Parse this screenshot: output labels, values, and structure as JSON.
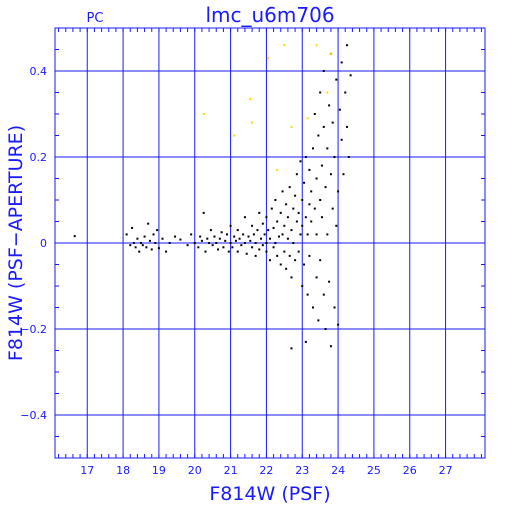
{
  "chart_data": {
    "type": "scatter",
    "title": "lmc_u6m706",
    "corner_label": "PC",
    "xlabel": "F814W (PSF)",
    "ylabel": "F814W (PSF−APERTURE)",
    "xlim": [
      16.1,
      28.1
    ],
    "ylim": [
      -0.5,
      0.5
    ],
    "x_ticks": [
      17,
      18,
      19,
      20,
      21,
      22,
      23,
      24,
      25,
      26,
      27
    ],
    "y_ticks": [
      -0.4,
      -0.2,
      0,
      0.2,
      0.4
    ],
    "y_tick_labels": [
      "−0.4",
      "−0.2",
      "0",
      "0.2",
      "0.4"
    ],
    "grid": true,
    "axis_color": "#1a1aff",
    "series": [
      {
        "color": "#000000",
        "points": [
          [
            16.65,
            0.016
          ],
          [
            18.1,
            0.02
          ],
          [
            18.2,
            -0.005
          ],
          [
            18.25,
            0.035
          ],
          [
            18.3,
            0.0
          ],
          [
            18.35,
            -0.01
          ],
          [
            18.4,
            0.01
          ],
          [
            18.45,
            -0.02
          ],
          [
            18.5,
            0.0
          ],
          [
            18.55,
            -0.005
          ],
          [
            18.6,
            0.015
          ],
          [
            18.65,
            -0.01
          ],
          [
            18.7,
            0.045
          ],
          [
            18.75,
            0.005
          ],
          [
            18.8,
            -0.015
          ],
          [
            18.85,
            0.02
          ],
          [
            18.9,
            0.0
          ],
          [
            18.95,
            0.03
          ],
          [
            19.0,
            -0.012
          ],
          [
            19.1,
            0.01
          ],
          [
            19.2,
            -0.02
          ],
          [
            19.3,
            0.0
          ],
          [
            19.45,
            0.015
          ],
          [
            19.6,
            0.008
          ],
          [
            19.8,
            -0.005
          ],
          [
            19.9,
            0.02
          ],
          [
            20.0,
            0.0
          ],
          [
            20.1,
            -0.01
          ],
          [
            20.15,
            0.015
          ],
          [
            20.2,
            0.005
          ],
          [
            20.25,
            0.07
          ],
          [
            20.3,
            -0.02
          ],
          [
            20.35,
            0.01
          ],
          [
            20.4,
            0.0
          ],
          [
            20.45,
            0.03
          ],
          [
            20.5,
            -0.005
          ],
          [
            20.55,
            0.015
          ],
          [
            20.6,
            0.0
          ],
          [
            20.65,
            -0.015
          ],
          [
            20.7,
            0.01
          ],
          [
            20.75,
            0.025
          ],
          [
            20.8,
            -0.01
          ],
          [
            20.85,
            0.005
          ],
          [
            20.9,
            0.02
          ],
          [
            20.95,
            -0.02
          ],
          [
            21.0,
            0.0
          ],
          [
            21.0,
            0.04
          ],
          [
            21.05,
            -0.01
          ],
          [
            21.1,
            0.015
          ],
          [
            21.15,
            0.005
          ],
          [
            21.2,
            -0.02
          ],
          [
            21.2,
            0.03
          ],
          [
            21.25,
            0.01
          ],
          [
            21.3,
            -0.005
          ],
          [
            21.35,
            0.02
          ],
          [
            21.4,
            0.0
          ],
          [
            21.4,
            0.06
          ],
          [
            21.45,
            -0.025
          ],
          [
            21.5,
            0.015
          ],
          [
            21.55,
            0.005
          ],
          [
            21.6,
            -0.01
          ],
          [
            21.6,
            0.04
          ],
          [
            21.65,
            0.02
          ],
          [
            21.7,
            -0.03
          ],
          [
            21.7,
            0.0
          ],
          [
            21.75,
            0.03
          ],
          [
            21.8,
            -0.015
          ],
          [
            21.8,
            0.07
          ],
          [
            21.85,
            0.01
          ],
          [
            21.9,
            -0.005
          ],
          [
            21.9,
            0.045
          ],
          [
            21.95,
            0.02
          ],
          [
            22.0,
            -0.02
          ],
          [
            22.0,
            0.06
          ],
          [
            22.0,
            0.0
          ],
          [
            22.05,
            0.03
          ],
          [
            22.1,
            -0.04
          ],
          [
            22.1,
            0.01
          ],
          [
            22.15,
            0.08
          ],
          [
            22.2,
            -0.01
          ],
          [
            22.2,
            0.035
          ],
          [
            22.25,
            0.0
          ],
          [
            22.25,
            0.1
          ],
          [
            22.3,
            -0.03
          ],
          [
            22.3,
            0.05
          ],
          [
            22.35,
            0.015
          ],
          [
            22.4,
            -0.05
          ],
          [
            22.4,
            0.07
          ],
          [
            22.45,
            0.02
          ],
          [
            22.45,
            0.12
          ],
          [
            22.5,
            -0.02
          ],
          [
            22.5,
            0.04
          ],
          [
            22.55,
            0.09
          ],
          [
            22.55,
            -0.06
          ],
          [
            22.6,
            0.01
          ],
          [
            22.6,
            0.06
          ],
          [
            22.65,
            -0.03
          ],
          [
            22.65,
            0.13
          ],
          [
            22.7,
            0.03
          ],
          [
            22.7,
            -0.08
          ],
          [
            22.75,
            0.08
          ],
          [
            22.75,
            0.0
          ],
          [
            22.8,
            -0.04
          ],
          [
            22.8,
            0.11
          ],
          [
            22.85,
            0.05
          ],
          [
            22.85,
            0.16
          ],
          [
            22.9,
            -0.02
          ],
          [
            22.9,
            0.07
          ],
          [
            22.95,
            0.02
          ],
          [
            22.95,
            0.19
          ],
          [
            23.0,
            -0.1
          ],
          [
            23.0,
            0.04
          ],
          [
            23.0,
            0.1
          ],
          [
            23.05,
            -0.05
          ],
          [
            23.05,
            0.14
          ],
          [
            23.1,
            0.06
          ],
          [
            23.1,
            0.2
          ],
          [
            23.15,
            -0.12
          ],
          [
            23.15,
            0.02
          ],
          [
            23.2,
            0.09
          ],
          [
            23.2,
            0.17
          ],
          [
            23.2,
            -0.03
          ],
          [
            23.25,
            0.12
          ],
          [
            23.25,
            0.05
          ],
          [
            23.3,
            -0.15
          ],
          [
            23.3,
            0.22
          ],
          [
            23.35,
            0.08
          ],
          [
            23.35,
            0.3
          ],
          [
            23.4,
            -0.08
          ],
          [
            23.4,
            0.15
          ],
          [
            23.4,
            0.02
          ],
          [
            23.45,
            0.25
          ],
          [
            23.45,
            -0.18
          ],
          [
            23.5,
            0.1
          ],
          [
            23.5,
            0.35
          ],
          [
            23.5,
            -0.04
          ],
          [
            23.55,
            0.18
          ],
          [
            23.55,
            0.06
          ],
          [
            23.6,
            0.4
          ],
          [
            23.6,
            -0.12
          ],
          [
            23.6,
            0.27
          ],
          [
            23.65,
            0.13
          ],
          [
            23.65,
            -0.2
          ],
          [
            23.7,
            0.22
          ],
          [
            23.7,
            0.02
          ],
          [
            23.75,
            0.32
          ],
          [
            23.75,
            -0.09
          ],
          [
            23.8,
            0.16
          ],
          [
            23.8,
            0.44
          ],
          [
            23.8,
            -0.24
          ],
          [
            23.85,
            0.08
          ],
          [
            23.85,
            0.28
          ],
          [
            23.9,
            -0.15
          ],
          [
            23.9,
            0.2
          ],
          [
            23.95,
            0.38
          ],
          [
            23.95,
            0.04
          ],
          [
            24.0,
            -0.19
          ],
          [
            24.0,
            0.12
          ],
          [
            24.05,
            0.31
          ],
          [
            24.1,
            0.24
          ],
          [
            24.1,
            0.42
          ],
          [
            24.15,
            0.16
          ],
          [
            24.2,
            0.35
          ],
          [
            24.25,
            0.46
          ],
          [
            24.25,
            0.27
          ],
          [
            24.3,
            0.2
          ],
          [
            24.35,
            0.39
          ],
          [
            22.7,
            -0.245
          ],
          [
            23.1,
            -0.23
          ]
        ]
      },
      {
        "color": "#ffd700",
        "points": [
          [
            20.25,
            0.3
          ],
          [
            21.1,
            0.25
          ],
          [
            21.55,
            0.335
          ],
          [
            21.6,
            0.28
          ],
          [
            22.05,
            0.43
          ],
          [
            22.5,
            0.46
          ],
          [
            22.7,
            0.27
          ],
          [
            23.15,
            0.29
          ],
          [
            23.4,
            0.46
          ],
          [
            23.8,
            0.44
          ],
          [
            22.3,
            0.17
          ],
          [
            23.7,
            0.35
          ]
        ]
      }
    ]
  }
}
